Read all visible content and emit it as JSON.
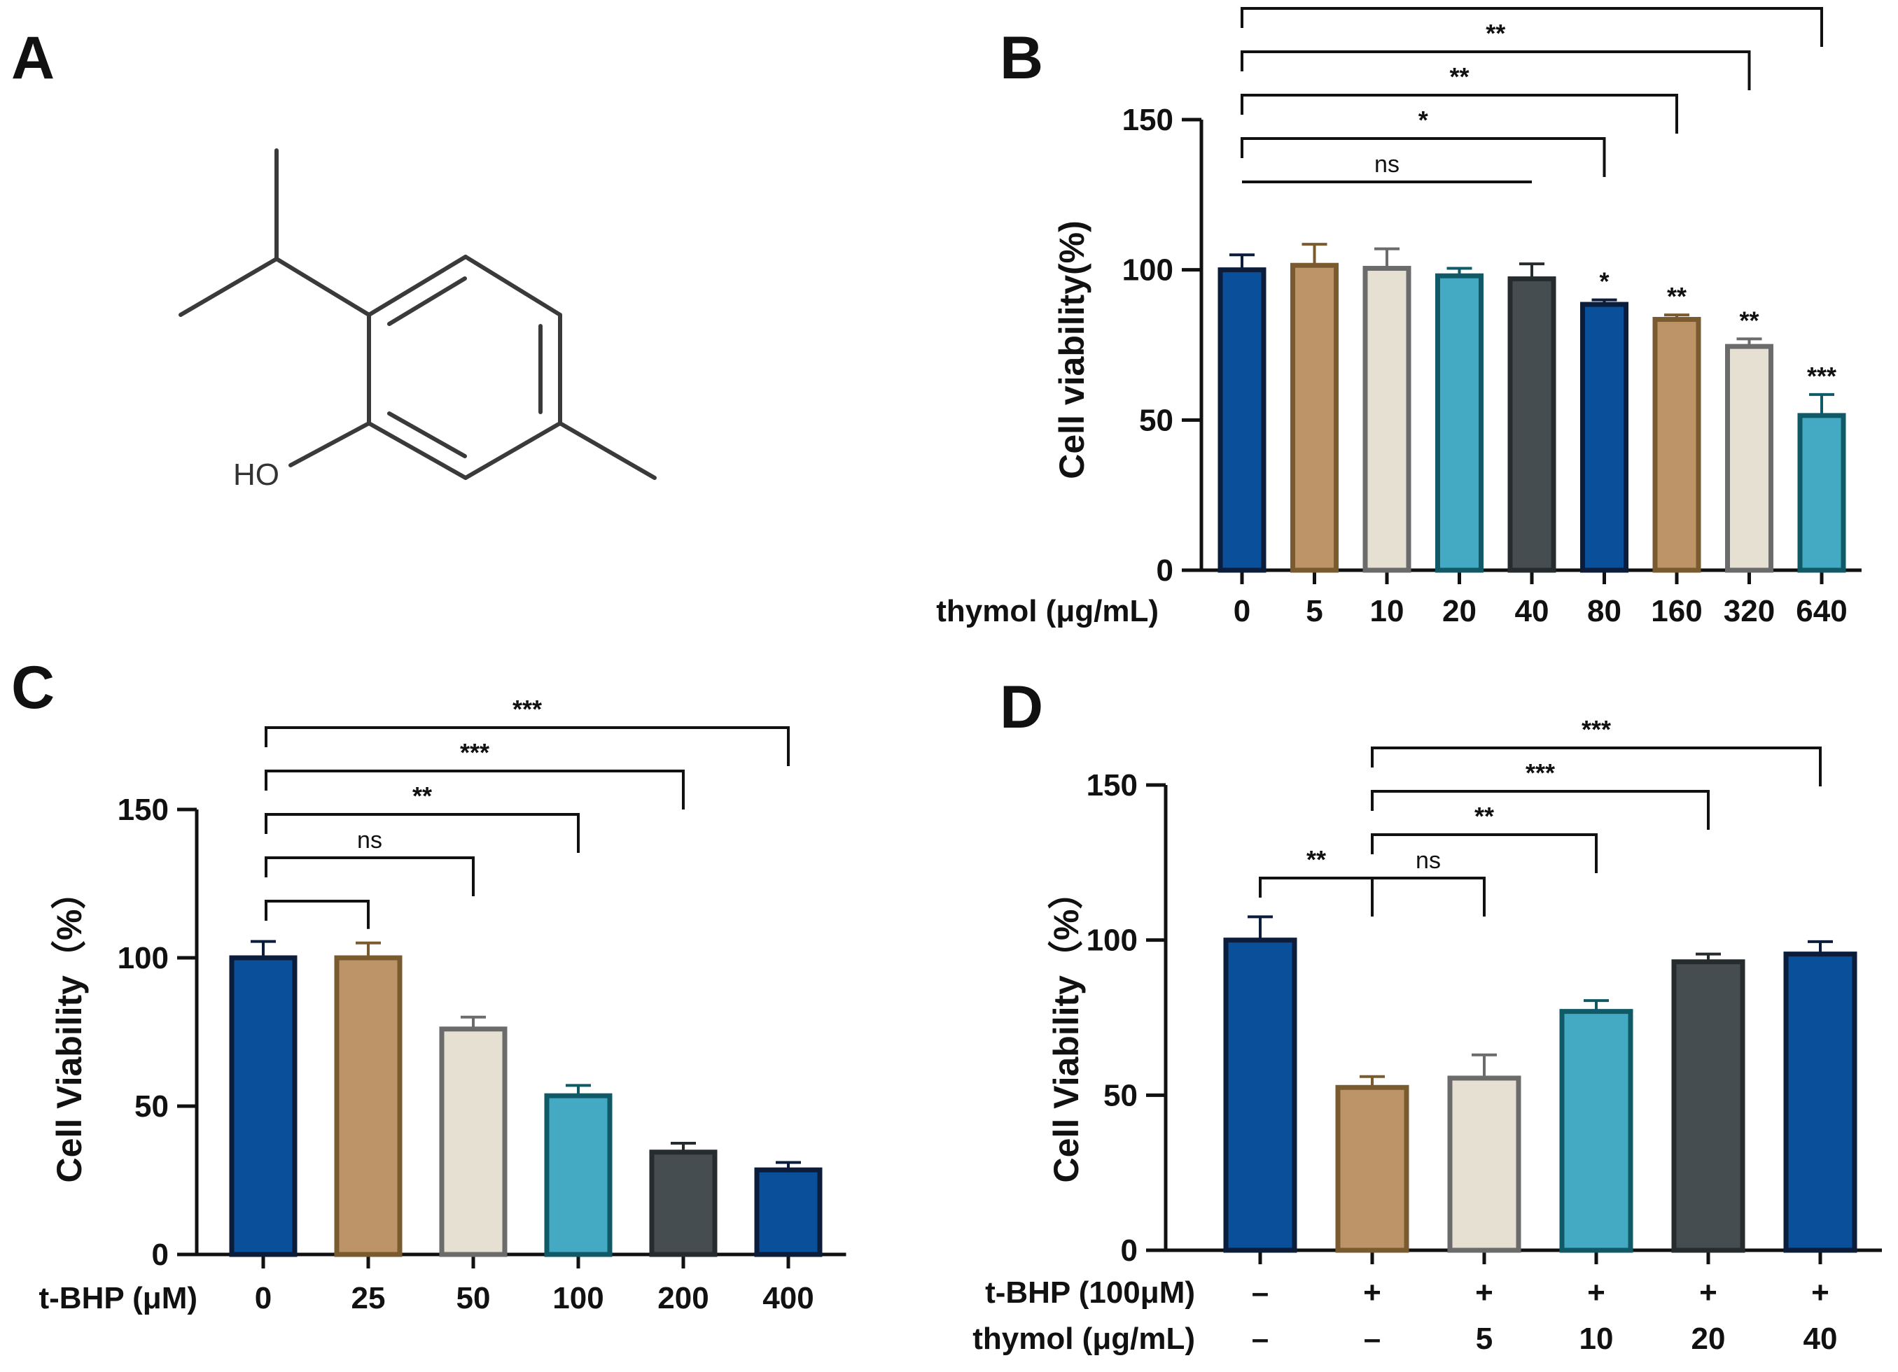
{
  "colors": {
    "navy": "#0a4f9a",
    "tan": "#bc9467",
    "beige": "#e6e0d3",
    "teal": "#44a9c2",
    "charcoal": "#454d51",
    "axis": "#111111"
  },
  "panels": {
    "A": {
      "label": "A",
      "atom_label": "HO"
    },
    "B": {
      "label": "B"
    },
    "C": {
      "label": "C"
    },
    "D": {
      "label": "D"
    }
  },
  "chart_data": [
    {
      "panel": "B",
      "type": "bar",
      "ylabel": "Cell viability(%)",
      "xlabel": "thymol (μg/mL)",
      "ylim": [
        0,
        150
      ],
      "yticks": [
        0,
        50,
        100,
        150
      ],
      "categories": [
        "0",
        "5",
        "10",
        "20",
        "40",
        "80",
        "160",
        "320",
        "640"
      ],
      "values": [
        100,
        101.5,
        100.5,
        98,
        97,
        88.5,
        83.5,
        74.5,
        51.5
      ],
      "errors": [
        5,
        7,
        6.5,
        2.5,
        5,
        1.5,
        1.5,
        2.5,
        7
      ],
      "bar_colors": [
        "#0a4f9a",
        "#bc9467",
        "#e6e0d3",
        "#44a9c2",
        "#454d51",
        "#0a4f9a",
        "#bc9467",
        "#e6e0d3",
        "#44a9c2"
      ],
      "edge_colors": [
        "#0b1d3a",
        "#7a5a2f",
        "#6b6b6b",
        "#0f5a66",
        "#262b2d",
        "#0b1d3a",
        "#7a5a2f",
        "#6b6b6b",
        "#0f5a66"
      ],
      "bar_annotations": [
        "",
        "",
        "",
        "",
        "",
        "*",
        "**",
        "**",
        "***"
      ],
      "brackets": [
        {
          "from": 0,
          "to": 4,
          "label": "ns",
          "level": 0,
          "drops": false
        },
        {
          "from": 0,
          "to": 5,
          "label": "*",
          "level": 1,
          "drops": true
        },
        {
          "from": 0,
          "to": 6,
          "label": "**",
          "level": 2,
          "drops": true
        },
        {
          "from": 0,
          "to": 7,
          "label": "**",
          "level": 3,
          "drops": true
        },
        {
          "from": 0,
          "to": 8,
          "label": "***",
          "level": 4,
          "drops": true
        }
      ]
    },
    {
      "panel": "C",
      "type": "bar",
      "ylabel": "Cell Viability（%）",
      "xlabel": "t-BHP (μM)",
      "ylim": [
        0,
        150
      ],
      "yticks": [
        0,
        50,
        100,
        150
      ],
      "categories": [
        "0",
        "25",
        "50",
        "100",
        "200",
        "400"
      ],
      "values": [
        100,
        100,
        76,
        53.5,
        34.5,
        28.5
      ],
      "errors": [
        5.5,
        5,
        4,
        3.5,
        3,
        2.5
      ],
      "bar_colors": [
        "#0a4f9a",
        "#bc9467",
        "#e6e0d3",
        "#44a9c2",
        "#454d51",
        "#0a4f9a"
      ],
      "edge_colors": [
        "#0b1d3a",
        "#7a5a2f",
        "#6b6b6b",
        "#0f5a66",
        "#262b2d",
        "#0b1d3a"
      ],
      "brackets": [
        {
          "from": 0,
          "to": 1,
          "label": "",
          "level": 0,
          "drops": true
        },
        {
          "from": 0,
          "to": 2,
          "label": "ns",
          "level": 1,
          "drops": true
        },
        {
          "from": 0,
          "to": 3,
          "label": "**",
          "level": 2,
          "drops": true
        },
        {
          "from": 0,
          "to": 4,
          "label": "***",
          "level": 3,
          "drops": true
        },
        {
          "from": 0,
          "to": 5,
          "label": "***",
          "level": 4,
          "drops": true
        }
      ]
    },
    {
      "panel": "D",
      "type": "bar",
      "ylabel": "Cell Viability（%）",
      "row_labels": [
        "t-BHP (100μM)",
        "thymol (μg/mL)"
      ],
      "rows": [
        [
          "–",
          "+",
          "+",
          "+",
          "+",
          "+"
        ],
        [
          "–",
          "–",
          "5",
          "10",
          "20",
          "40"
        ]
      ],
      "ylim": [
        0,
        150
      ],
      "yticks": [
        0,
        50,
        100,
        150
      ],
      "values": [
        100,
        52.5,
        55.5,
        77,
        93,
        95.5
      ],
      "errors": [
        7.5,
        3.5,
        7.5,
        3.5,
        2.5,
        4
      ],
      "bar_colors": [
        "#0a4f9a",
        "#bc9467",
        "#e6e0d3",
        "#44a9c2",
        "#454d51",
        "#0a4f9a"
      ],
      "edge_colors": [
        "#0b1d3a",
        "#7a5a2f",
        "#6b6b6b",
        "#0f5a66",
        "#262b2d",
        "#0b1d3a"
      ],
      "brackets": [
        {
          "from": 0,
          "to": 1,
          "label": "**",
          "level": 0,
          "drops": true
        },
        {
          "from": 1,
          "to": 2,
          "label": "ns",
          "level": 0,
          "drops": true
        },
        {
          "from": 1,
          "to": 3,
          "label": "**",
          "level": 1,
          "drops": true
        },
        {
          "from": 1,
          "to": 4,
          "label": "***",
          "level": 2,
          "drops": true
        },
        {
          "from": 1,
          "to": 5,
          "label": "***",
          "level": 3,
          "drops": true
        }
      ]
    }
  ]
}
